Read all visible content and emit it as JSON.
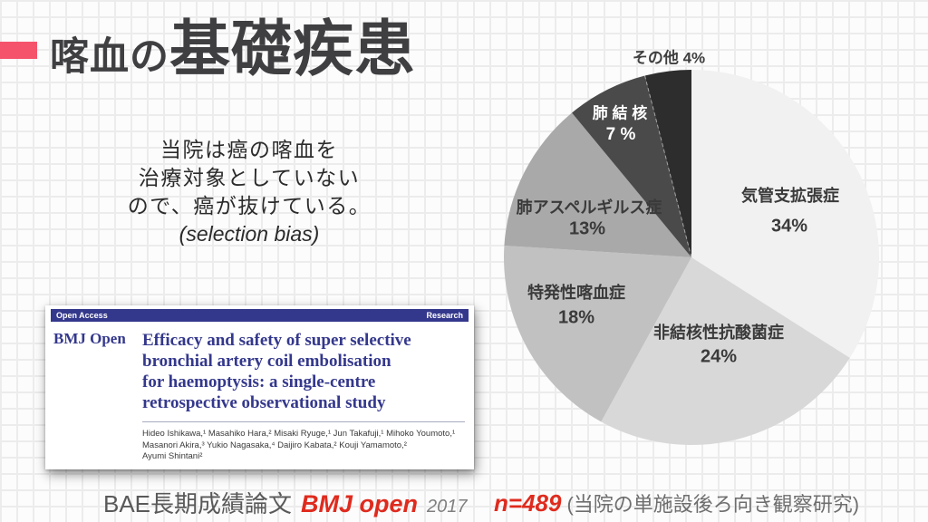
{
  "slide": {
    "title": {
      "prefix": "喀血の",
      "main": "基礎疾患"
    },
    "note": {
      "line1": "当院は癌の喀血を",
      "line2": "治療対象としていない",
      "line3": "ので、癌が抜けている。",
      "bias": "(selection bias)"
    },
    "paper": {
      "header_left": "Open Access",
      "header_right": "Research",
      "journal": "BMJ Open",
      "title_line1": "Efficacy and safety of super selective",
      "title_line2": "bronchial artery coil embolisation",
      "title_line3": "for haemoptysis: a single-centre",
      "title_line4": "retrospective observational study",
      "authors_line1": "Hideo Ishikawa,¹ Masahiko Hara,² Misaki Ryuge,¹ Jun Takafuji,¹ Mihoko Youmoto,¹",
      "authors_line2": "Masanori Akira,³ Yukio Nagasaka,⁴ Daijiro Kabata,² Kouji Yamamoto,²",
      "authors_line3": "Ayumi Shintani²"
    },
    "footer": {
      "left_label": "BAE長期成績論文",
      "journal_ref": "BMJ open",
      "year": "2017",
      "n_value": "n=489",
      "right_note": "(当院の単施設後ろ向き観察研究)"
    },
    "colors": {
      "accent_bar": "#f5536c",
      "text_red": "#df2b1e",
      "bmj_navy": "#34388c",
      "title_gray": "#3f3f42"
    }
  },
  "chart_data": {
    "type": "pie",
    "title": "",
    "categories": [
      "気管支拡張症",
      "非結核性抗酸菌症",
      "特発性喀血症",
      "肺アスペルギルス症",
      "肺結核",
      "その他"
    ],
    "values": [
      34,
      24,
      18,
      13,
      7,
      4
    ],
    "unit": "%",
    "n_total": "n=489",
    "colors": [
      "#f1f1f1",
      "#d8d8d8",
      "#c1c1c1",
      "#a9a9a9",
      "#4a4a4a",
      "#2d2d2d"
    ],
    "start_angle_deg": 0,
    "direction": "clockwise",
    "legend_position": "labels-on-slices",
    "dashed_separator_after_slice_index": 4,
    "labels": [
      {
        "name": "気管支拡張症",
        "pct": "34%"
      },
      {
        "name": "非結核性抗酸菌症",
        "pct": "24%"
      },
      {
        "name": "特発性喀血症",
        "pct": "18%"
      },
      {
        "name": "肺アスペルギルス症",
        "pct": "13%"
      },
      {
        "name": "肺 結 核",
        "pct": "7 %"
      },
      {
        "name": "その他 4%",
        "pct": ""
      }
    ]
  }
}
